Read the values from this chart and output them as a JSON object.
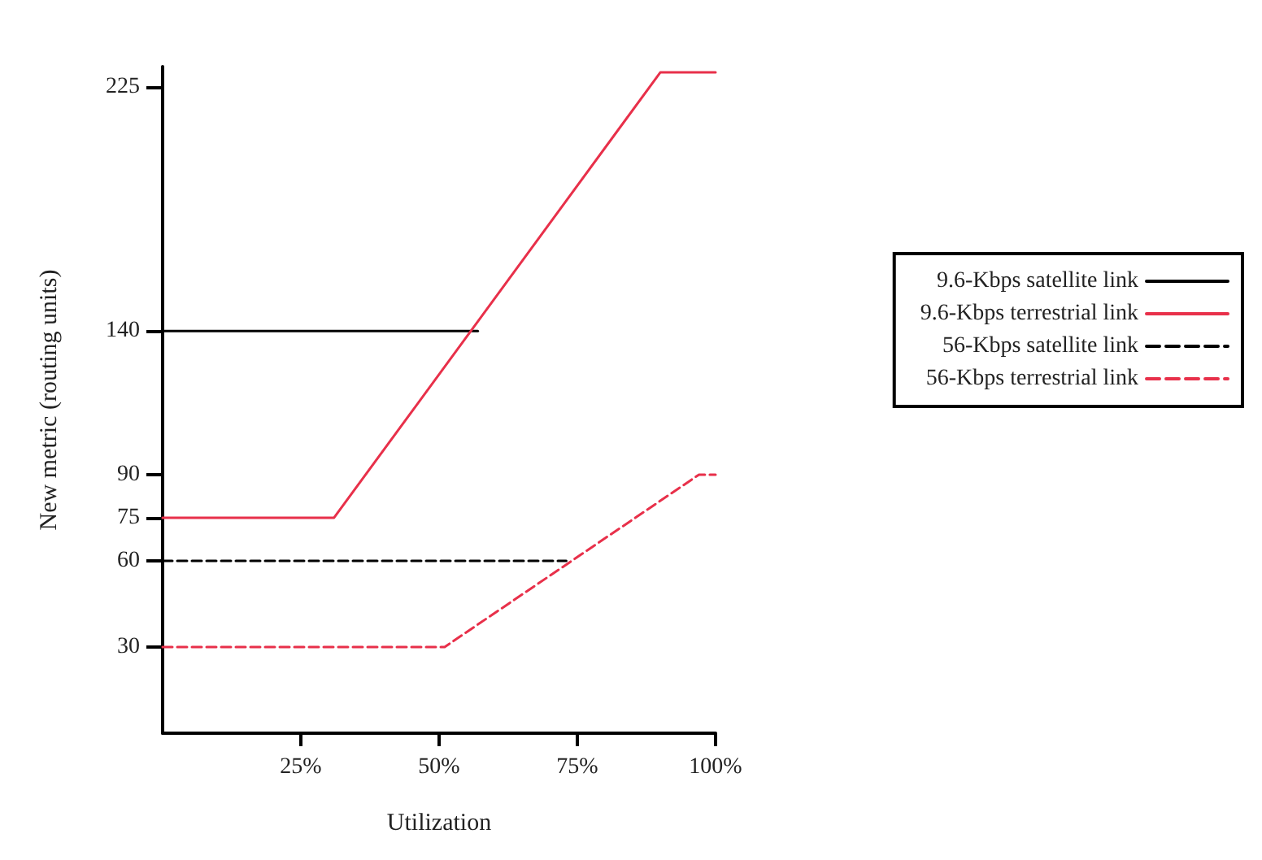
{
  "chart_data": {
    "type": "line",
    "xlabel": "Utilization",
    "ylabel": "New metric (routing units)",
    "xlim": [
      0,
      100
    ],
    "xticks": [
      {
        "value": 25,
        "label": "25%"
      },
      {
        "value": 50,
        "label": "50%"
      },
      {
        "value": 75,
        "label": "75%"
      },
      {
        "value": 100,
        "label": "100%"
      }
    ],
    "ylim": [
      0,
      232
    ],
    "yticks": [
      30,
      60,
      75,
      90,
      140,
      225
    ],
    "series": [
      {
        "name": "9.6-Kbps satellite link",
        "color": "#000000",
        "line_style": "solid",
        "x": [
          0,
          57
        ],
        "values": [
          140,
          140
        ]
      },
      {
        "name": "9.6-Kbps terrestrial link",
        "color": "#e8304a",
        "line_style": "solid",
        "x": [
          0,
          31,
          90,
          100
        ],
        "values": [
          75,
          75,
          230,
          230
        ]
      },
      {
        "name": "56-Kbps satellite link",
        "color": "#000000",
        "line_style": "dashed",
        "x": [
          0,
          73
        ],
        "values": [
          60,
          60
        ]
      },
      {
        "name": "56-Kbps terrestrial link",
        "color": "#e8304a",
        "line_style": "dashed",
        "x": [
          0,
          51,
          97,
          100
        ],
        "values": [
          30,
          30,
          90,
          90
        ]
      }
    ],
    "grid": false,
    "legend": "right",
    "marker": "none"
  }
}
